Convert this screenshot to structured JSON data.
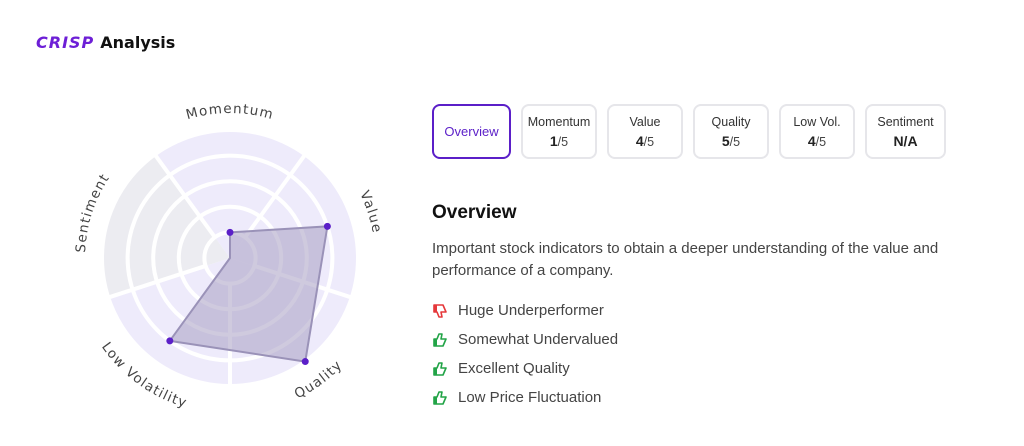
{
  "header": {
    "brand": "CRISP",
    "title": "Analysis"
  },
  "radar": {
    "axes": [
      "Momentum",
      "Value",
      "Quality",
      "Low Volatility",
      "Sentiment"
    ],
    "scores": [
      1,
      4,
      5,
      4,
      null
    ],
    "max": 5,
    "colors": {
      "fill": "#a79fc2",
      "point": "#5b1fc8",
      "ring_active": "#eeebfb",
      "ring_inactive": "#ececf1"
    }
  },
  "tabs": [
    {
      "label": "Overview",
      "active": true
    },
    {
      "label": "Momentum",
      "score": "1",
      "out_of": "/5"
    },
    {
      "label": "Value",
      "score": "4",
      "out_of": "/5"
    },
    {
      "label": "Quality",
      "score": "5",
      "out_of": "/5"
    },
    {
      "label": "Low Vol.",
      "score": "4",
      "out_of": "/5"
    },
    {
      "label": "Sentiment",
      "score_text": "N/A"
    }
  ],
  "overview": {
    "title": "Overview",
    "description": "Important stock indicators to obtain a deeper understanding of the value and performance of a company."
  },
  "indicators": [
    {
      "icon": "thumbs-down-icon",
      "color": "#e5383b",
      "text": "Huge Underperformer"
    },
    {
      "icon": "thumbs-up-icon",
      "color": "#22a447",
      "text": "Somewhat Undervalued"
    },
    {
      "icon": "thumbs-up-icon",
      "color": "#22a447",
      "text": "Excellent Quality"
    },
    {
      "icon": "thumbs-up-icon",
      "color": "#22a447",
      "text": "Low Price Fluctuation"
    }
  ]
}
